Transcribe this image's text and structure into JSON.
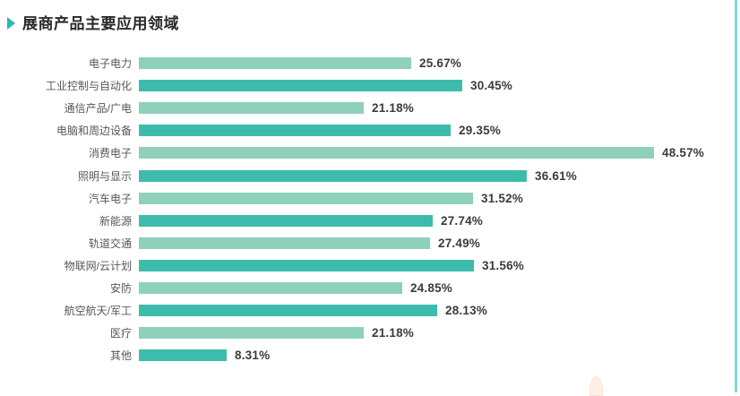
{
  "page": {
    "title": "展商产品主要应用领域",
    "accent_color": "#2eb8ab",
    "right_edge_line_color": "#7edbd4",
    "decoration_color": "#fdf0e8"
  },
  "chart_data": {
    "type": "bar",
    "orientation": "horizontal",
    "title": "展商产品主要应用领域",
    "categories": [
      "电子电力",
      "工业控制与自动化",
      "通信产品/广电",
      "电脑和周边设备",
      "消费电子",
      "照明与显示",
      "汽车电子",
      "新能源",
      "轨道交通",
      "物联网/云计划",
      "安防",
      "航空航天/军工",
      "医疗",
      "其他"
    ],
    "values": [
      25.67,
      30.45,
      21.18,
      29.35,
      48.57,
      36.61,
      31.52,
      27.74,
      27.49,
      31.56,
      24.85,
      28.13,
      21.18,
      8.31
    ],
    "value_labels": [
      "25.67%",
      "30.45%",
      "21.18%",
      "29.35%",
      "48.57%",
      "36.61%",
      "31.52%",
      "27.74%",
      "27.49%",
      "31.56%",
      "24.85%",
      "28.13%",
      "21.18%",
      "8.31%"
    ],
    "value_suffix": "%",
    "xlim": [
      0,
      50
    ],
    "bar_colors_alternate": [
      "#8fd0bb",
      "#3ebcab"
    ],
    "label_color": "#595757",
    "value_text_color": "#3e3a39",
    "grid": false,
    "legend": "none"
  }
}
